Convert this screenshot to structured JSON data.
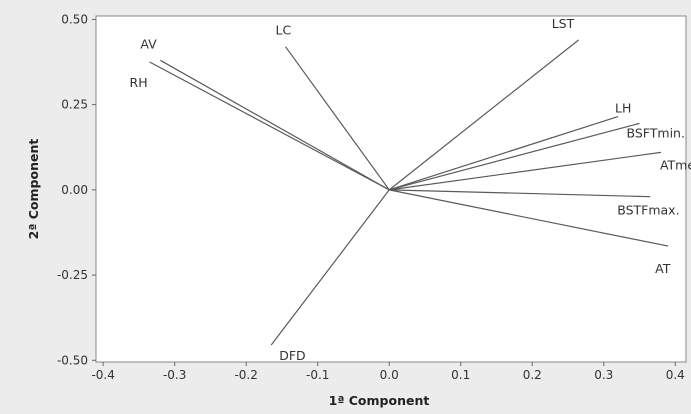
{
  "chart_data": {
    "type": "biplot",
    "xlabel": "1ª Component",
    "ylabel": "2ª Component",
    "xlim": [
      -0.41,
      0.415
    ],
    "ylim": [
      -0.505,
      0.51
    ],
    "xticks": [
      -0.4,
      -0.3,
      -0.2,
      -0.1,
      0.0,
      0.1,
      0.2,
      0.3,
      0.4
    ],
    "xtick_labels": [
      "-0.4",
      "-0.3",
      "-0.2",
      "-0.1",
      "0.0",
      "0.1",
      "0.2",
      "0.3",
      "0.4"
    ],
    "yticks": [
      -0.5,
      -0.25,
      0.0,
      0.25,
      0.5
    ],
    "ytick_labels": [
      "-0.50",
      "-0.25",
      "0.00",
      "0.25",
      "0.50"
    ],
    "grid": false,
    "colors": {
      "line": "#5a5a5a",
      "plot_bg": "#ffffff",
      "page_bg": "#ececec",
      "frame": "#888888"
    },
    "vectors": [
      {
        "name": "AV",
        "x": -0.32,
        "y": 0.38
      },
      {
        "name": "RH",
        "x": -0.335,
        "y": 0.375
      },
      {
        "name": "LC",
        "x": -0.145,
        "y": 0.42
      },
      {
        "name": "LST",
        "x": 0.265,
        "y": 0.44
      },
      {
        "name": "LH",
        "x": 0.32,
        "y": 0.215
      },
      {
        "name": "BSFTmin.",
        "x": 0.35,
        "y": 0.195
      },
      {
        "name": "ATmed.",
        "x": 0.38,
        "y": 0.11
      },
      {
        "name": "BSTFmax.",
        "x": 0.365,
        "y": -0.02
      },
      {
        "name": "AT",
        "x": 0.39,
        "y": -0.165
      },
      {
        "name": "DFD",
        "x": -0.165,
        "y": -0.455
      }
    ]
  }
}
